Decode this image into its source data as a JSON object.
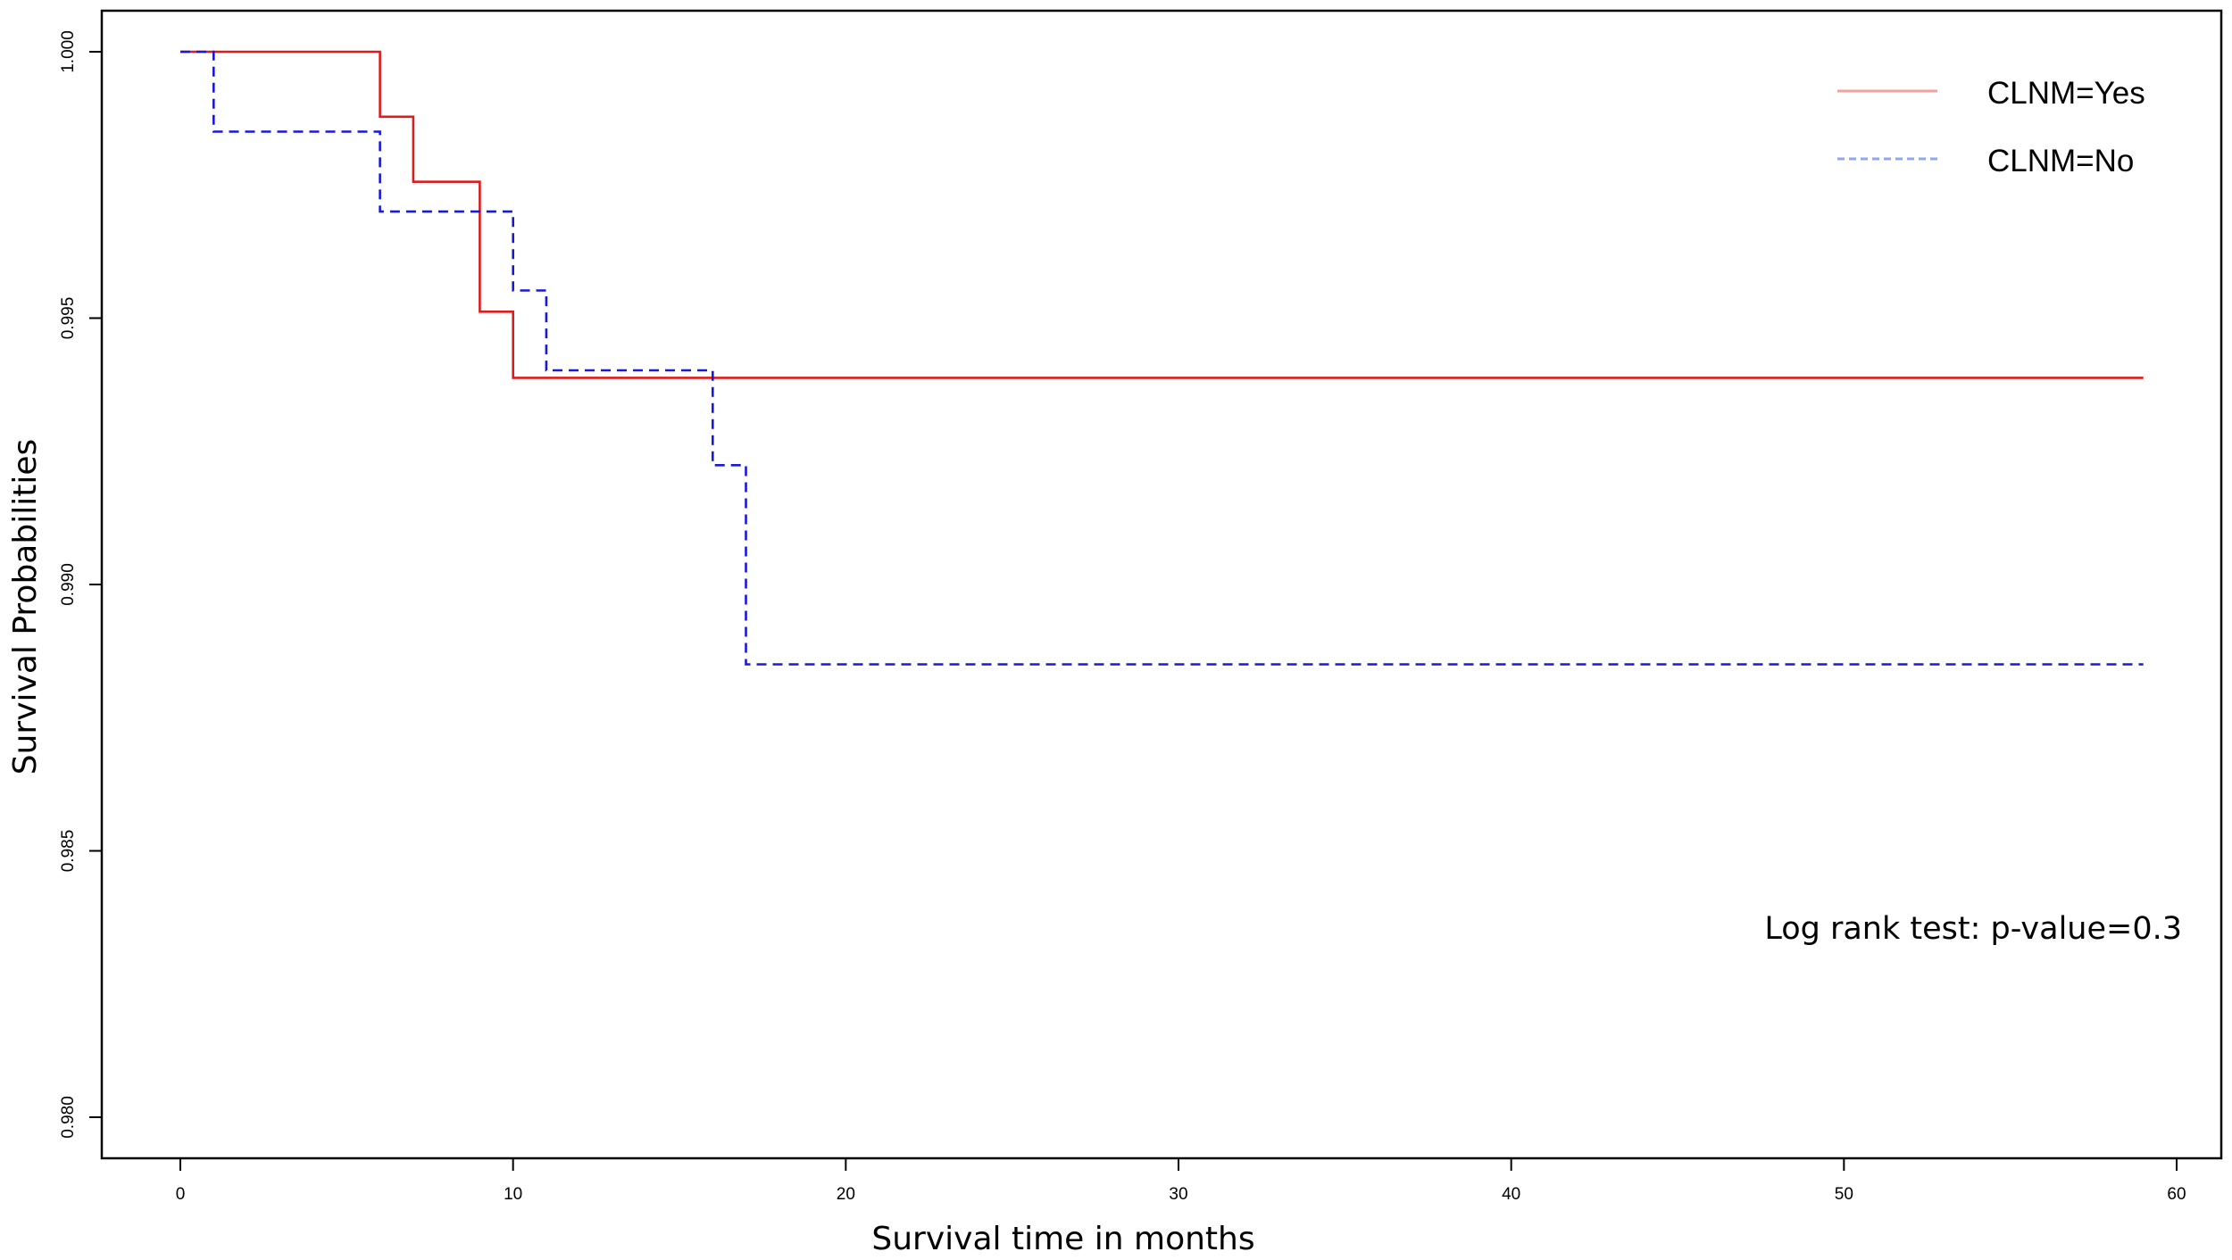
{
  "chart_data": {
    "type": "line",
    "subtype": "step",
    "title": "",
    "xlabel": "Survival time in months",
    "ylabel": "Survival Probabilities",
    "xlim": [
      0,
      60
    ],
    "ylim": [
      0.98,
      1.0
    ],
    "xticks": [
      0,
      10,
      20,
      30,
      40,
      50,
      60
    ],
    "yticks": [
      0.98,
      0.985,
      0.99,
      0.995,
      1.0
    ],
    "xtick_labels": [
      "0",
      "10",
      "20",
      "30",
      "40",
      "50",
      "60"
    ],
    "ytick_labels": [
      "0.980",
      "0.985",
      "0.990",
      "0.995",
      "1.000"
    ],
    "grid": false,
    "legend_position": "top-right",
    "series": [
      {
        "name": "CLNM=Yes",
        "color": "#dd1c1c",
        "legend_color": "#f4a0a0",
        "linestyle": "solid",
        "x": [
          0,
          6,
          7,
          9,
          10,
          59
        ],
        "y": [
          1.0,
          0.99878,
          0.99756,
          0.99512,
          0.99388,
          0.99388
        ]
      },
      {
        "name": "CLNM=No",
        "color": "#1a1ad6",
        "legend_color": "#8fa8f0",
        "linestyle": "dashed",
        "x": [
          0,
          1,
          6,
          10,
          11,
          16,
          17,
          59
        ],
        "y": [
          1.0,
          0.9985,
          0.997,
          0.99552,
          0.99402,
          0.99224,
          0.9885,
          0.9885
        ]
      }
    ],
    "annotations": [
      {
        "text": "Log rank test: p-value=0.3"
      }
    ]
  }
}
